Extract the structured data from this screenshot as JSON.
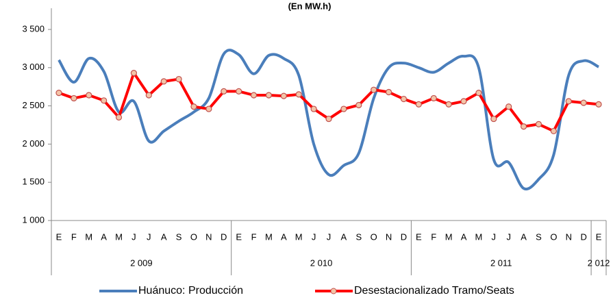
{
  "chart_data": {
    "type": "line",
    "title": "(En MW.h)",
    "groups": [
      {
        "name": "2 009",
        "categories": [
          "E",
          "F",
          "M",
          "A",
          "M",
          "J",
          "J",
          "A",
          "S",
          "O",
          "N",
          "D"
        ]
      },
      {
        "name": "2 010",
        "categories": [
          "E",
          "F",
          "M",
          "A",
          "M",
          "J",
          "J",
          "A",
          "S",
          "O",
          "N",
          "D"
        ]
      },
      {
        "name": "2 011",
        "categories": [
          "E",
          "F",
          "M",
          "A",
          "M",
          "J",
          "J",
          "A",
          "S",
          "O",
          "N",
          "D"
        ]
      },
      {
        "name": "2 012",
        "categories": [
          "E"
        ]
      }
    ],
    "series": [
      {
        "name": "Huánuco: Producción",
        "color": "#4a7ebb",
        "smooth": true,
        "marker": false,
        "values": [
          3100,
          2810,
          3120,
          2950,
          2420,
          2560,
          2040,
          2170,
          2300,
          2420,
          2600,
          3180,
          3170,
          2920,
          3160,
          3120,
          2900,
          2000,
          1600,
          1720,
          1880,
          2600,
          3000,
          3060,
          3000,
          2940,
          3060,
          3150,
          3000,
          1800,
          1760,
          1420,
          1540,
          1860,
          2900,
          3090,
          3010
        ]
      },
      {
        "name": "Desestacionalizado Tramo/Seats",
        "color": "#ff0000",
        "smooth": false,
        "marker": true,
        "values": [
          2670,
          2600,
          2640,
          2570,
          2350,
          2930,
          2640,
          2820,
          2850,
          2490,
          2460,
          2690,
          2690,
          2640,
          2640,
          2630,
          2650,
          2460,
          2330,
          2460,
          2510,
          2710,
          2680,
          2590,
          2520,
          2600,
          2520,
          2560,
          2670,
          2330,
          2490,
          2230,
          2260,
          2170,
          2560,
          2540,
          2520
        ]
      }
    ],
    "ylim": [
      1000,
      3500
    ],
    "yticks": [
      {
        "value": 1000,
        "label": "1 000"
      },
      {
        "value": 1500,
        "label": "1 500"
      },
      {
        "value": 2000,
        "label": "2 000"
      },
      {
        "value": 2500,
        "label": "2 500"
      },
      {
        "value": 3000,
        "label": "3 000"
      },
      {
        "value": 3500,
        "label": "3 500"
      }
    ],
    "legend": "bottom"
  }
}
